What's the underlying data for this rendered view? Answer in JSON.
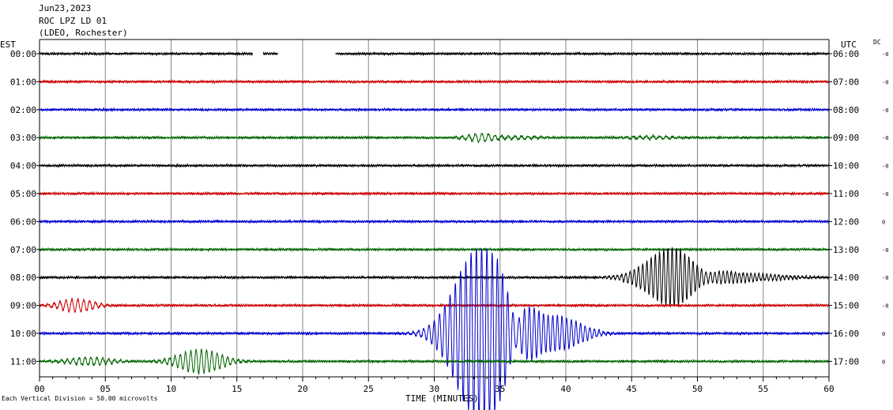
{
  "header": {
    "date": "Jun23,2023",
    "station": "ROC LPZ LD 01",
    "network": "(LDEO, Rochester)"
  },
  "footer_note": "Each Vertical Division =   50.00 microvolts",
  "chart_data": {
    "type": "line",
    "title": "",
    "xlabel": "TIME (MINUTES)",
    "ylabel_left": "EST",
    "ylabel_right": "UTC",
    "dc_label": "DC",
    "xlim": [
      0,
      60
    ],
    "x_ticks": [
      "00",
      "05",
      "10",
      "15",
      "20",
      "25",
      "30",
      "35",
      "40",
      "45",
      "50",
      "55",
      "60"
    ],
    "grid": "vertical every minute",
    "trace_colors": [
      "#000000",
      "#cc0000",
      "#0000cc",
      "#006600"
    ],
    "rows": [
      {
        "est": "00:00",
        "utc": "06:00",
        "dc": "-0",
        "color": "#000000",
        "gaps": [
          [
            16.2,
            17.0
          ],
          [
            18.1,
            22.5
          ]
        ]
      },
      {
        "est": "01:00",
        "utc": "07:00",
        "dc": "-0",
        "color": "#cc0000"
      },
      {
        "est": "02:00",
        "utc": "08:00",
        "dc": "-0",
        "color": "#0000cc"
      },
      {
        "est": "03:00",
        "utc": "09:00",
        "dc": "-0",
        "color": "#006600",
        "events": [
          {
            "t": 33.5,
            "amp": 5,
            "width": 0.9,
            "period": 0.5
          },
          {
            "t": 36.5,
            "amp": 2,
            "width": 1.5,
            "period": 0.5
          },
          {
            "t": 46.5,
            "amp": 2,
            "width": 1.5,
            "period": 0.5
          }
        ]
      },
      {
        "est": "04:00",
        "utc": "10:00",
        "dc": "-0",
        "color": "#000000"
      },
      {
        "est": "05:00",
        "utc": "11:00",
        "dc": "-0",
        "color": "#cc0000"
      },
      {
        "est": "06:00",
        "utc": "12:00",
        "dc": "0",
        "color": "#0000cc"
      },
      {
        "est": "07:00",
        "utc": "13:00",
        "dc": "-0",
        "color": "#006600"
      },
      {
        "est": "08:00",
        "utc": "14:00",
        "dc": "-0",
        "color": "#000000",
        "events": [
          {
            "t": 48.0,
            "amp": 35,
            "width": 1.8,
            "period": 0.32
          },
          {
            "t": 52.5,
            "amp": 6,
            "width": 3.0,
            "period": 0.3
          }
        ]
      },
      {
        "est": "09:00",
        "utc": "15:00",
        "dc": "-0",
        "color": "#cc0000",
        "events": [
          {
            "t": 2.8,
            "amp": 8,
            "width": 1.2,
            "period": 0.45
          }
        ]
      },
      {
        "est": "10:00",
        "utc": "16:00",
        "dc": "0",
        "color": "#0000cc",
        "events": [
          {
            "t": 33.5,
            "amp": 110,
            "width": 1.8,
            "period": 0.4
          },
          {
            "t": 37.5,
            "amp": 22,
            "width": 2.0,
            "period": 0.35
          },
          {
            "t": 40.0,
            "amp": 12,
            "width": 1.5,
            "period": 0.35
          }
        ]
      },
      {
        "est": "11:00",
        "utc": "17:00",
        "dc": "0",
        "color": "#006600",
        "events": [
          {
            "t": 3.8,
            "amp": 5,
            "width": 1.5,
            "period": 0.45
          },
          {
            "t": 12.2,
            "amp": 15,
            "width": 1.5,
            "period": 0.4
          }
        ]
      }
    ]
  }
}
